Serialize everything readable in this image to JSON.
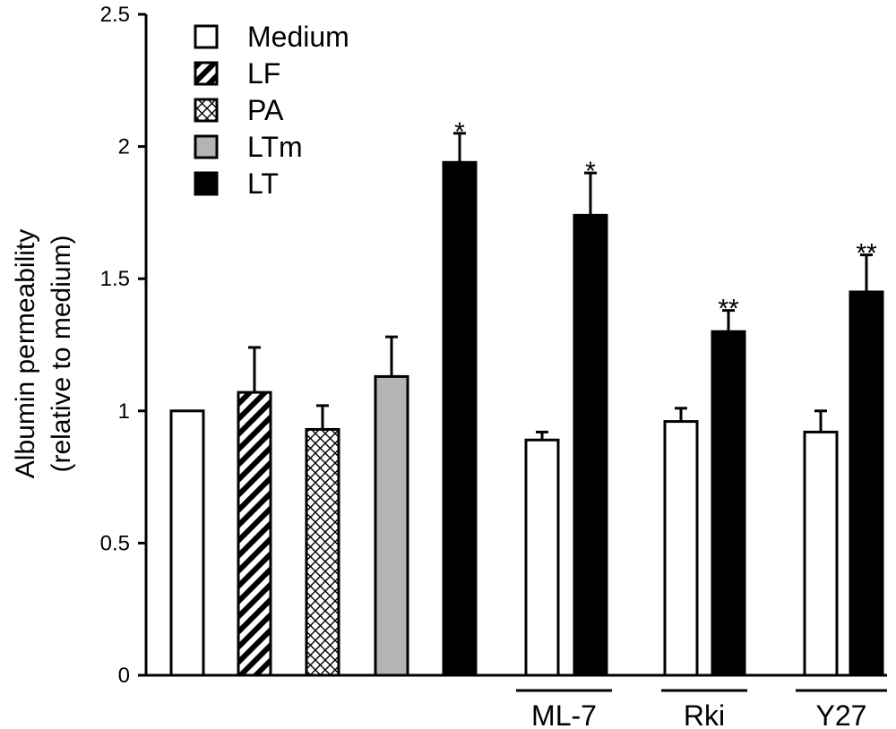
{
  "chart_data": {
    "type": "bar",
    "ylabel_line1": "Albumin permeability",
    "ylabel_line2": "(relative to medium)",
    "ylim": [
      0,
      2.5
    ],
    "yticks": [
      "0",
      "0.5",
      "1",
      "1.5",
      "2",
      "2.5"
    ],
    "legend": [
      {
        "label": "Medium",
        "fill": "white"
      },
      {
        "label": "LF",
        "fill": "diag"
      },
      {
        "label": "PA",
        "fill": "cross"
      },
      {
        "label": "LTm",
        "fill": "gray"
      },
      {
        "label": "LT",
        "fill": "black"
      }
    ],
    "bars": [
      {
        "series": "Medium",
        "value": 1.0,
        "error": 0,
        "mark": ""
      },
      {
        "series": "LF",
        "value": 1.07,
        "error": 0.17,
        "mark": ""
      },
      {
        "series": "PA",
        "value": 0.93,
        "error": 0.09,
        "mark": ""
      },
      {
        "series": "LTm",
        "value": 1.13,
        "error": 0.15,
        "mark": ""
      },
      {
        "series": "LT",
        "value": 1.94,
        "error": 0.11,
        "mark": "*"
      },
      {
        "series": "Medium",
        "value": 0.89,
        "error": 0.03,
        "mark": "",
        "group": "ML-7"
      },
      {
        "series": "LT",
        "value": 1.74,
        "error": 0.16,
        "mark": "*",
        "group": "ML-7"
      },
      {
        "series": "Medium",
        "value": 0.96,
        "error": 0.05,
        "mark": "",
        "group": "Rki"
      },
      {
        "series": "LT",
        "value": 1.3,
        "error": 0.08,
        "mark": "**",
        "group": "Rki"
      },
      {
        "series": "Medium",
        "value": 0.92,
        "error": 0.08,
        "mark": "",
        "group": "Y27"
      },
      {
        "series": "LT",
        "value": 1.45,
        "error": 0.14,
        "mark": "**",
        "group": "Y27"
      }
    ],
    "groups": [
      "ML-7",
      "Rki",
      "Y27"
    ],
    "colors": {
      "gray": "#b4b4b4",
      "black": "#000000",
      "white": "#ffffff"
    }
  }
}
